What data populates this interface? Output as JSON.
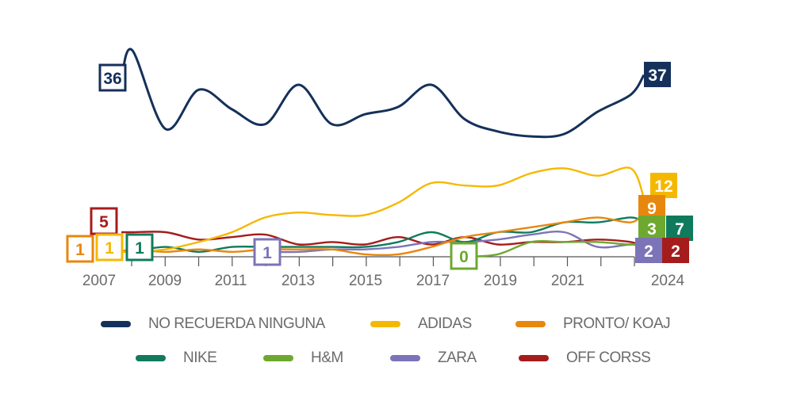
{
  "chart_data": {
    "type": "line",
    "title": "",
    "xlabel": "",
    "ylabel": "",
    "x_tick_labels": [
      "2007",
      "2009",
      "2011",
      "2013",
      "2015",
      "2017",
      "2019",
      "2021",
      "2024"
    ],
    "grid": false,
    "legend_position": "bottom",
    "series": [
      {
        "name": "NO RECUERDA NINGUNA",
        "color": "#15305a",
        "x": [
          2007,
          2008,
          2009,
          2010,
          2011,
          2012,
          2013,
          2014,
          2015,
          2016,
          2017,
          2018,
          2019,
          2020,
          2021,
          2022,
          2023,
          2024
        ],
        "values": [
          36,
          42,
          26,
          34,
          30,
          27,
          35,
          27,
          29,
          30.5,
          35,
          28,
          25.5,
          24.5,
          25,
          29.5,
          33,
          37
        ],
        "start_label": "36",
        "end_label": "37"
      },
      {
        "name": "ADIDAS",
        "color": "#f5b800",
        "x": [
          2007,
          2008,
          2009,
          2010,
          2011,
          2012,
          2013,
          2014,
          2015,
          2016,
          2017,
          2018,
          2019,
          2020,
          2021,
          2022,
          2023,
          2024
        ],
        "values": [
          1,
          1,
          1.5,
          3,
          5,
          8,
          9,
          8.5,
          8.5,
          11,
          15,
          14.5,
          14.5,
          17,
          18,
          16.5,
          18,
          12
        ],
        "start_label": "1",
        "end_label": "12"
      },
      {
        "name": "PRONTO/ KOAJ",
        "color": "#e8870e",
        "x": [
          2007,
          2008,
          2009,
          2010,
          2011,
          2012,
          2013,
          2014,
          2015,
          2016,
          2017,
          2018,
          2019,
          2020,
          2021,
          2022,
          2023,
          2024
        ],
        "values": [
          1,
          1.5,
          1,
          1.5,
          1,
          1.5,
          1.5,
          1.5,
          0.5,
          0.5,
          2,
          4,
          5,
          6,
          7,
          8,
          7,
          9
        ],
        "start_label": "1",
        "end_label": "9"
      },
      {
        "name": "NIKE",
        "color": "#0f7b5c",
        "x": [
          2008,
          2009,
          2010,
          2011,
          2012,
          2013,
          2014,
          2015,
          2016,
          2017,
          2018,
          2019,
          2020,
          2021,
          2022,
          2023,
          2024
        ],
        "values": [
          1,
          2,
          1,
          2,
          2,
          2,
          2,
          2,
          3,
          5,
          3,
          5,
          5,
          7,
          7,
          8,
          7
        ],
        "start_label": "1",
        "end_label": "7"
      },
      {
        "name": "H&M",
        "color": "#6fa82f",
        "x": [
          2018,
          2019,
          2020,
          2021,
          2022,
          2023,
          2024
        ],
        "values": [
          0,
          0.5,
          3,
          3,
          3,
          2.5,
          3
        ],
        "start_label": "0",
        "end_label": "3"
      },
      {
        "name": "ZARA",
        "color": "#7b74b8",
        "x": [
          2012,
          2013,
          2014,
          2015,
          2016,
          2017,
          2018,
          2019,
          2020,
          2021,
          2022,
          2023,
          2024
        ],
        "values": [
          1,
          1,
          1.5,
          1.5,
          2,
          3,
          3,
          3.5,
          4.5,
          5,
          2,
          2.5,
          2
        ],
        "start_label": "1",
        "end_label": "2"
      },
      {
        "name": "OFF CORSS",
        "color": "#a51c1c",
        "x": [
          2007,
          2008,
          2009,
          2010,
          2011,
          2012,
          2013,
          2014,
          2015,
          2016,
          2017,
          2018,
          2019,
          2020,
          2021,
          2022,
          2023,
          2024
        ],
        "values": [
          5,
          5,
          5,
          3.5,
          4,
          4.5,
          2.5,
          3,
          2.5,
          4,
          2.5,
          4,
          2.5,
          3,
          3,
          3.5,
          3,
          2
        ],
        "start_label": "5",
        "end_label": "2"
      }
    ]
  }
}
